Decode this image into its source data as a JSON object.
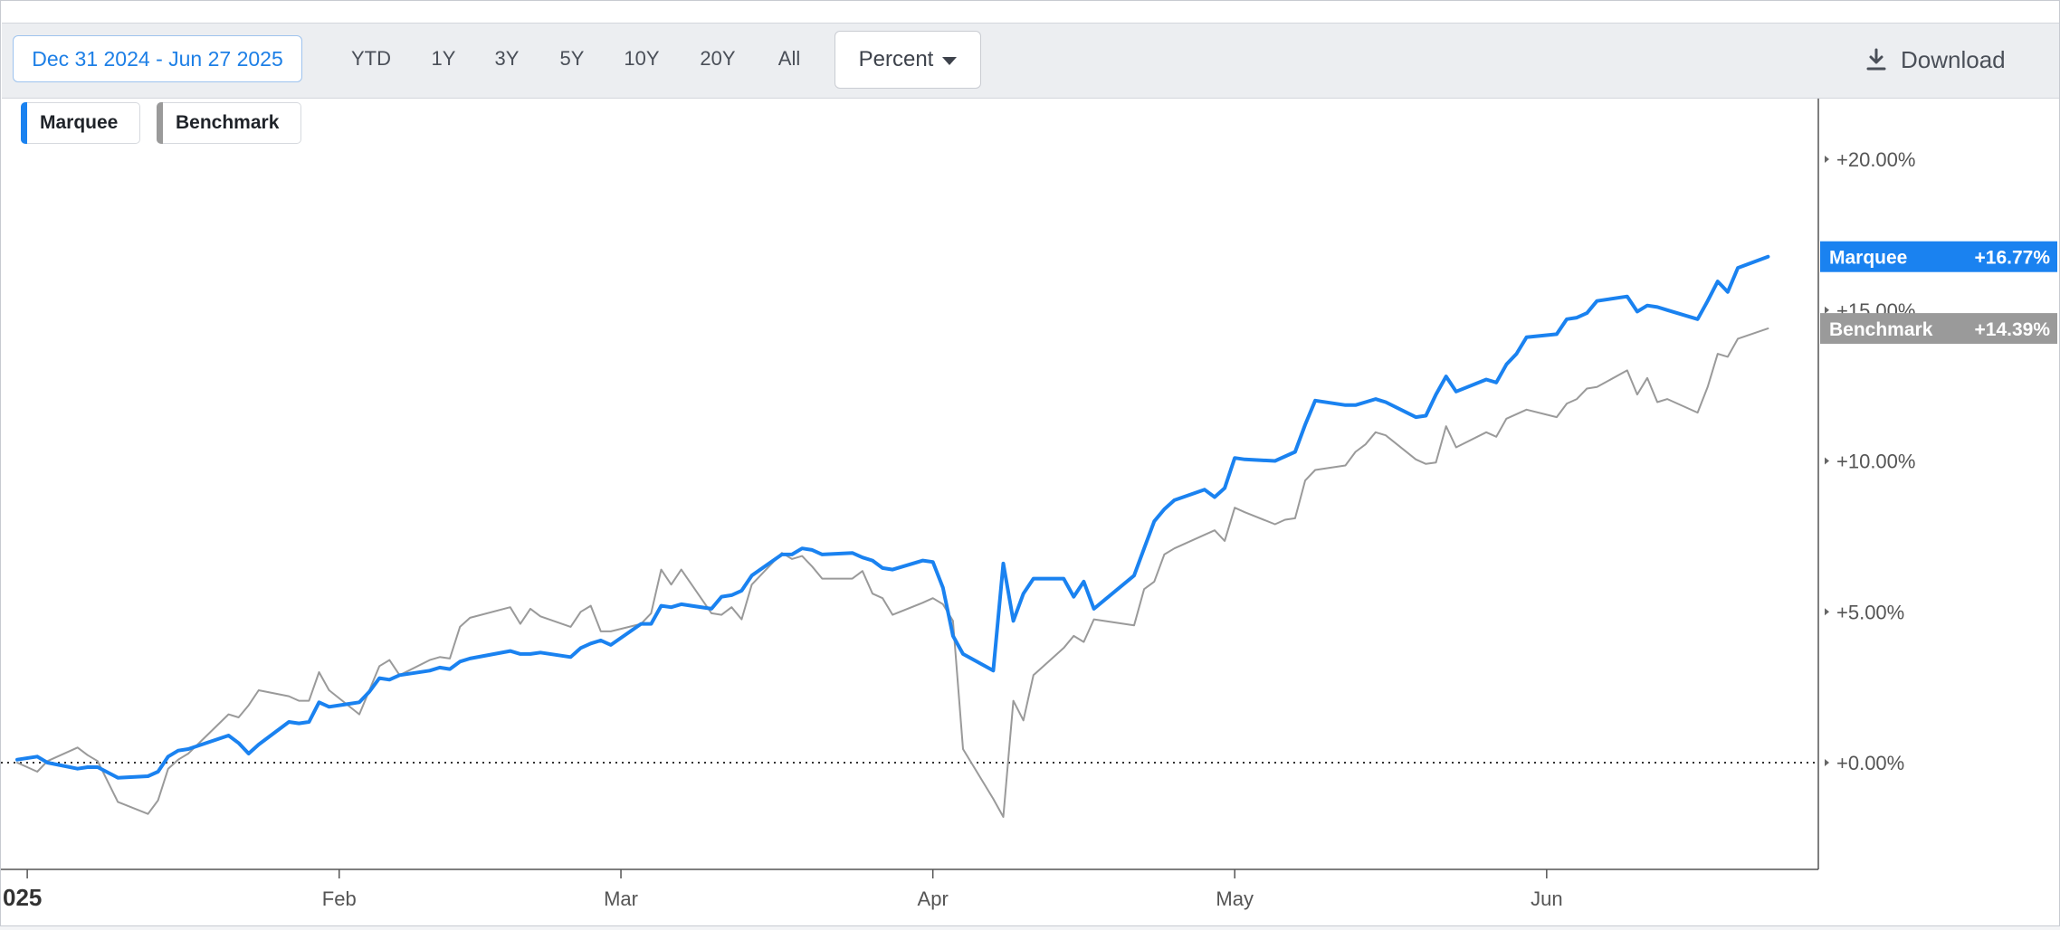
{
  "toolbar": {
    "date_range": "Dec 31 2024 - Jun 27 2025",
    "periods": [
      "YTD",
      "1Y",
      "3Y",
      "5Y",
      "10Y",
      "20Y",
      "All"
    ],
    "mode": "Percent",
    "download_label": "Download"
  },
  "legend": [
    {
      "name": "Marquee",
      "color": "#1a82f0"
    },
    {
      "name": "Benchmark",
      "color": "#9a9a9a"
    }
  ],
  "chart_data": {
    "type": "line",
    "x_tick_labels": [
      "025",
      "Feb",
      "Mar",
      "Apr",
      "May",
      "Jun"
    ],
    "y_tick_labels": [
      "+20.00%",
      "+15.00%",
      "+10.00%",
      "+5.00%",
      "+0.00%"
    ],
    "y_ticks": [
      20,
      15,
      10,
      5,
      0
    ],
    "ylim": [
      -3.5,
      22.0
    ],
    "xlim": [
      "2024-12-31",
      "2025-06-28"
    ],
    "zero_line": "dotted",
    "series": [
      {
        "name": "Marquee",
        "color": "#1a82f0",
        "last_label": "+16.77%",
        "points": [
          [
            "2024-12-31",
            0.1
          ],
          [
            "2025-01-02",
            0.2
          ],
          [
            "2025-01-03",
            0.0
          ],
          [
            "2025-01-06",
            -0.2
          ],
          [
            "2025-01-07",
            -0.15
          ],
          [
            "2025-01-08",
            -0.15
          ],
          [
            "2025-01-10",
            -0.5
          ],
          [
            "2025-01-13",
            -0.45
          ],
          [
            "2025-01-14",
            -0.3
          ],
          [
            "2025-01-15",
            0.2
          ],
          [
            "2025-01-16",
            0.4
          ],
          [
            "2025-01-17",
            0.45
          ],
          [
            "2025-01-21",
            0.9
          ],
          [
            "2025-01-22",
            0.65
          ],
          [
            "2025-01-23",
            0.3
          ],
          [
            "2025-01-24",
            0.6
          ],
          [
            "2025-01-27",
            1.35
          ],
          [
            "2025-01-28",
            1.3
          ],
          [
            "2025-01-29",
            1.35
          ],
          [
            "2025-01-30",
            2.0
          ],
          [
            "2025-01-31",
            1.85
          ],
          [
            "2025-02-03",
            2.0
          ],
          [
            "2025-02-04",
            2.35
          ],
          [
            "2025-02-05",
            2.8
          ],
          [
            "2025-02-06",
            2.75
          ],
          [
            "2025-02-07",
            2.9
          ],
          [
            "2025-02-10",
            3.05
          ],
          [
            "2025-02-11",
            3.15
          ],
          [
            "2025-02-12",
            3.1
          ],
          [
            "2025-02-13",
            3.35
          ],
          [
            "2025-02-14",
            3.45
          ],
          [
            "2025-02-18",
            3.7
          ],
          [
            "2025-02-19",
            3.6
          ],
          [
            "2025-02-20",
            3.6
          ],
          [
            "2025-02-21",
            3.65
          ],
          [
            "2025-02-24",
            3.5
          ],
          [
            "2025-02-25",
            3.8
          ],
          [
            "2025-02-26",
            3.95
          ],
          [
            "2025-02-27",
            4.05
          ],
          [
            "2025-02-28",
            3.9
          ],
          [
            "2025-03-03",
            4.6
          ],
          [
            "2025-03-04",
            4.6
          ],
          [
            "2025-03-05",
            5.2
          ],
          [
            "2025-03-06",
            5.15
          ],
          [
            "2025-03-07",
            5.25
          ],
          [
            "2025-03-10",
            5.1
          ],
          [
            "2025-03-11",
            5.5
          ],
          [
            "2025-03-12",
            5.55
          ],
          [
            "2025-03-13",
            5.7
          ],
          [
            "2025-03-14",
            6.2
          ],
          [
            "2025-03-17",
            6.9
          ],
          [
            "2025-03-18",
            6.9
          ],
          [
            "2025-03-19",
            7.1
          ],
          [
            "2025-03-20",
            7.05
          ],
          [
            "2025-03-21",
            6.9
          ],
          [
            "2025-03-24",
            6.95
          ],
          [
            "2025-03-25",
            6.8
          ],
          [
            "2025-03-26",
            6.7
          ],
          [
            "2025-03-27",
            6.45
          ],
          [
            "2025-03-28",
            6.4
          ],
          [
            "2025-03-31",
            6.7
          ],
          [
            "2025-04-01",
            6.65
          ],
          [
            "2025-04-02",
            5.8
          ],
          [
            "2025-04-03",
            4.2
          ],
          [
            "2025-04-04",
            3.6
          ],
          [
            "2025-04-07",
            3.05
          ],
          [
            "2025-04-08",
            6.6
          ],
          [
            "2025-04-09",
            4.7
          ],
          [
            "2025-04-10",
            5.6
          ],
          [
            "2025-04-11",
            6.1
          ],
          [
            "2025-04-14",
            6.1
          ],
          [
            "2025-04-15",
            5.5
          ],
          [
            "2025-04-16",
            6.0
          ],
          [
            "2025-04-17",
            5.1
          ],
          [
            "2025-04-21",
            6.2
          ],
          [
            "2025-04-22",
            7.1
          ],
          [
            "2025-04-23",
            8.0
          ],
          [
            "2025-04-24",
            8.4
          ],
          [
            "2025-04-25",
            8.7
          ],
          [
            "2025-04-28",
            9.05
          ],
          [
            "2025-04-29",
            8.8
          ],
          [
            "2025-04-30",
            9.1
          ],
          [
            "2025-05-01",
            10.1
          ],
          [
            "2025-05-02",
            10.05
          ],
          [
            "2025-05-05",
            10.0
          ],
          [
            "2025-05-06",
            10.15
          ],
          [
            "2025-05-07",
            10.3
          ],
          [
            "2025-05-08",
            11.2
          ],
          [
            "2025-05-09",
            12.0
          ],
          [
            "2025-05-12",
            11.85
          ],
          [
            "2025-05-13",
            11.85
          ],
          [
            "2025-05-14",
            11.95
          ],
          [
            "2025-05-15",
            12.05
          ],
          [
            "2025-05-16",
            11.95
          ],
          [
            "2025-05-19",
            11.45
          ],
          [
            "2025-05-20",
            11.5
          ],
          [
            "2025-05-21",
            12.2
          ],
          [
            "2025-05-22",
            12.8
          ],
          [
            "2025-05-23",
            12.3
          ],
          [
            "2025-05-26",
            12.7
          ],
          [
            "2025-05-27",
            12.6
          ],
          [
            "2025-05-28",
            13.2
          ],
          [
            "2025-05-29",
            13.55
          ],
          [
            "2025-05-30",
            14.1
          ],
          [
            "2025-06-02",
            14.2
          ],
          [
            "2025-06-03",
            14.7
          ],
          [
            "2025-06-04",
            14.75
          ],
          [
            "2025-06-05",
            14.9
          ],
          [
            "2025-06-06",
            15.3
          ],
          [
            "2025-06-09",
            15.45
          ],
          [
            "2025-06-10",
            14.95
          ],
          [
            "2025-06-11",
            15.15
          ],
          [
            "2025-06-12",
            15.1
          ],
          [
            "2025-06-13",
            15.0
          ],
          [
            "2025-06-16",
            14.7
          ],
          [
            "2025-06-17",
            15.3
          ],
          [
            "2025-06-18",
            15.95
          ],
          [
            "2025-06-19",
            15.6
          ],
          [
            "2025-06-20",
            16.4
          ],
          [
            "2025-06-23",
            16.77
          ]
        ]
      },
      {
        "name": "Benchmark",
        "color": "#9a9a9a",
        "last_label": "+14.39%",
        "points": [
          [
            "2024-12-31",
            0.0
          ],
          [
            "2025-01-02",
            -0.3
          ],
          [
            "2025-01-03",
            0.05
          ],
          [
            "2025-01-06",
            0.5
          ],
          [
            "2025-01-07",
            0.25
          ],
          [
            "2025-01-08",
            0.05
          ],
          [
            "2025-01-10",
            -1.3
          ],
          [
            "2025-01-13",
            -1.7
          ],
          [
            "2025-01-14",
            -1.25
          ],
          [
            "2025-01-15",
            -0.2
          ],
          [
            "2025-01-16",
            0.1
          ],
          [
            "2025-01-17",
            0.3
          ],
          [
            "2025-01-21",
            1.6
          ],
          [
            "2025-01-22",
            1.5
          ],
          [
            "2025-01-23",
            1.9
          ],
          [
            "2025-01-24",
            2.4
          ],
          [
            "2025-01-27",
            2.2
          ],
          [
            "2025-01-28",
            2.05
          ],
          [
            "2025-01-29",
            2.05
          ],
          [
            "2025-01-30",
            3.0
          ],
          [
            "2025-01-31",
            2.4
          ],
          [
            "2025-02-03",
            1.6
          ],
          [
            "2025-02-04",
            2.4
          ],
          [
            "2025-02-05",
            3.2
          ],
          [
            "2025-02-06",
            3.4
          ],
          [
            "2025-02-07",
            2.9
          ],
          [
            "2025-02-10",
            3.4
          ],
          [
            "2025-02-11",
            3.5
          ],
          [
            "2025-02-12",
            3.45
          ],
          [
            "2025-02-13",
            4.5
          ],
          [
            "2025-02-14",
            4.8
          ],
          [
            "2025-02-18",
            5.15
          ],
          [
            "2025-02-19",
            4.6
          ],
          [
            "2025-02-20",
            5.1
          ],
          [
            "2025-02-21",
            4.85
          ],
          [
            "2025-02-24",
            4.5
          ],
          [
            "2025-02-25",
            5.0
          ],
          [
            "2025-02-26",
            5.2
          ],
          [
            "2025-02-27",
            4.35
          ],
          [
            "2025-02-28",
            4.35
          ],
          [
            "2025-03-03",
            4.6
          ],
          [
            "2025-03-04",
            4.95
          ],
          [
            "2025-03-05",
            6.4
          ],
          [
            "2025-03-06",
            5.9
          ],
          [
            "2025-03-07",
            6.4
          ],
          [
            "2025-03-10",
            4.95
          ],
          [
            "2025-03-11",
            4.9
          ],
          [
            "2025-03-12",
            5.15
          ],
          [
            "2025-03-13",
            4.75
          ],
          [
            "2025-03-14",
            5.9
          ],
          [
            "2025-03-17",
            6.95
          ],
          [
            "2025-03-18",
            6.75
          ],
          [
            "2025-03-19",
            6.85
          ],
          [
            "2025-03-20",
            6.5
          ],
          [
            "2025-03-21",
            6.1
          ],
          [
            "2025-03-24",
            6.1
          ],
          [
            "2025-03-25",
            6.35
          ],
          [
            "2025-03-26",
            5.6
          ],
          [
            "2025-03-27",
            5.45
          ],
          [
            "2025-03-28",
            4.9
          ],
          [
            "2025-03-31",
            5.3
          ],
          [
            "2025-04-01",
            5.45
          ],
          [
            "2025-04-02",
            5.25
          ],
          [
            "2025-04-03",
            4.7
          ],
          [
            "2025-04-04",
            0.45
          ],
          [
            "2025-04-07",
            -1.2
          ],
          [
            "2025-04-08",
            -1.8
          ],
          [
            "2025-04-09",
            2.05
          ],
          [
            "2025-04-10",
            1.4
          ],
          [
            "2025-04-11",
            2.9
          ],
          [
            "2025-04-14",
            3.8
          ],
          [
            "2025-04-15",
            4.2
          ],
          [
            "2025-04-16",
            4.0
          ],
          [
            "2025-04-17",
            4.75
          ],
          [
            "2025-04-21",
            4.55
          ],
          [
            "2025-04-22",
            5.75
          ],
          [
            "2025-04-23",
            6.0
          ],
          [
            "2025-04-24",
            6.9
          ],
          [
            "2025-04-25",
            7.1
          ],
          [
            "2025-04-28",
            7.55
          ],
          [
            "2025-04-29",
            7.7
          ],
          [
            "2025-04-30",
            7.35
          ],
          [
            "2025-05-01",
            8.45
          ],
          [
            "2025-05-02",
            8.3
          ],
          [
            "2025-05-05",
            7.9
          ],
          [
            "2025-05-06",
            8.05
          ],
          [
            "2025-05-07",
            8.1
          ],
          [
            "2025-05-08",
            9.35
          ],
          [
            "2025-05-09",
            9.7
          ],
          [
            "2025-05-12",
            9.85
          ],
          [
            "2025-05-13",
            10.3
          ],
          [
            "2025-05-14",
            10.55
          ],
          [
            "2025-05-15",
            10.95
          ],
          [
            "2025-05-16",
            10.85
          ],
          [
            "2025-05-19",
            10.05
          ],
          [
            "2025-05-20",
            9.9
          ],
          [
            "2025-05-21",
            9.95
          ],
          [
            "2025-05-22",
            11.15
          ],
          [
            "2025-05-23",
            10.45
          ],
          [
            "2025-05-26",
            10.95
          ],
          [
            "2025-05-27",
            10.8
          ],
          [
            "2025-05-28",
            11.4
          ],
          [
            "2025-05-29",
            11.55
          ],
          [
            "2025-05-30",
            11.7
          ],
          [
            "2025-06-02",
            11.45
          ],
          [
            "2025-06-03",
            11.9
          ],
          [
            "2025-06-04",
            12.05
          ],
          [
            "2025-06-05",
            12.4
          ],
          [
            "2025-06-06",
            12.45
          ],
          [
            "2025-06-09",
            13.0
          ],
          [
            "2025-06-10",
            12.2
          ],
          [
            "2025-06-11",
            12.75
          ],
          [
            "2025-06-12",
            11.95
          ],
          [
            "2025-06-13",
            12.05
          ],
          [
            "2025-06-16",
            11.6
          ],
          [
            "2025-06-17",
            12.45
          ],
          [
            "2025-06-18",
            13.55
          ],
          [
            "2025-06-19",
            13.45
          ],
          [
            "2025-06-20",
            14.05
          ],
          [
            "2025-06-23",
            14.39
          ]
        ]
      }
    ]
  }
}
